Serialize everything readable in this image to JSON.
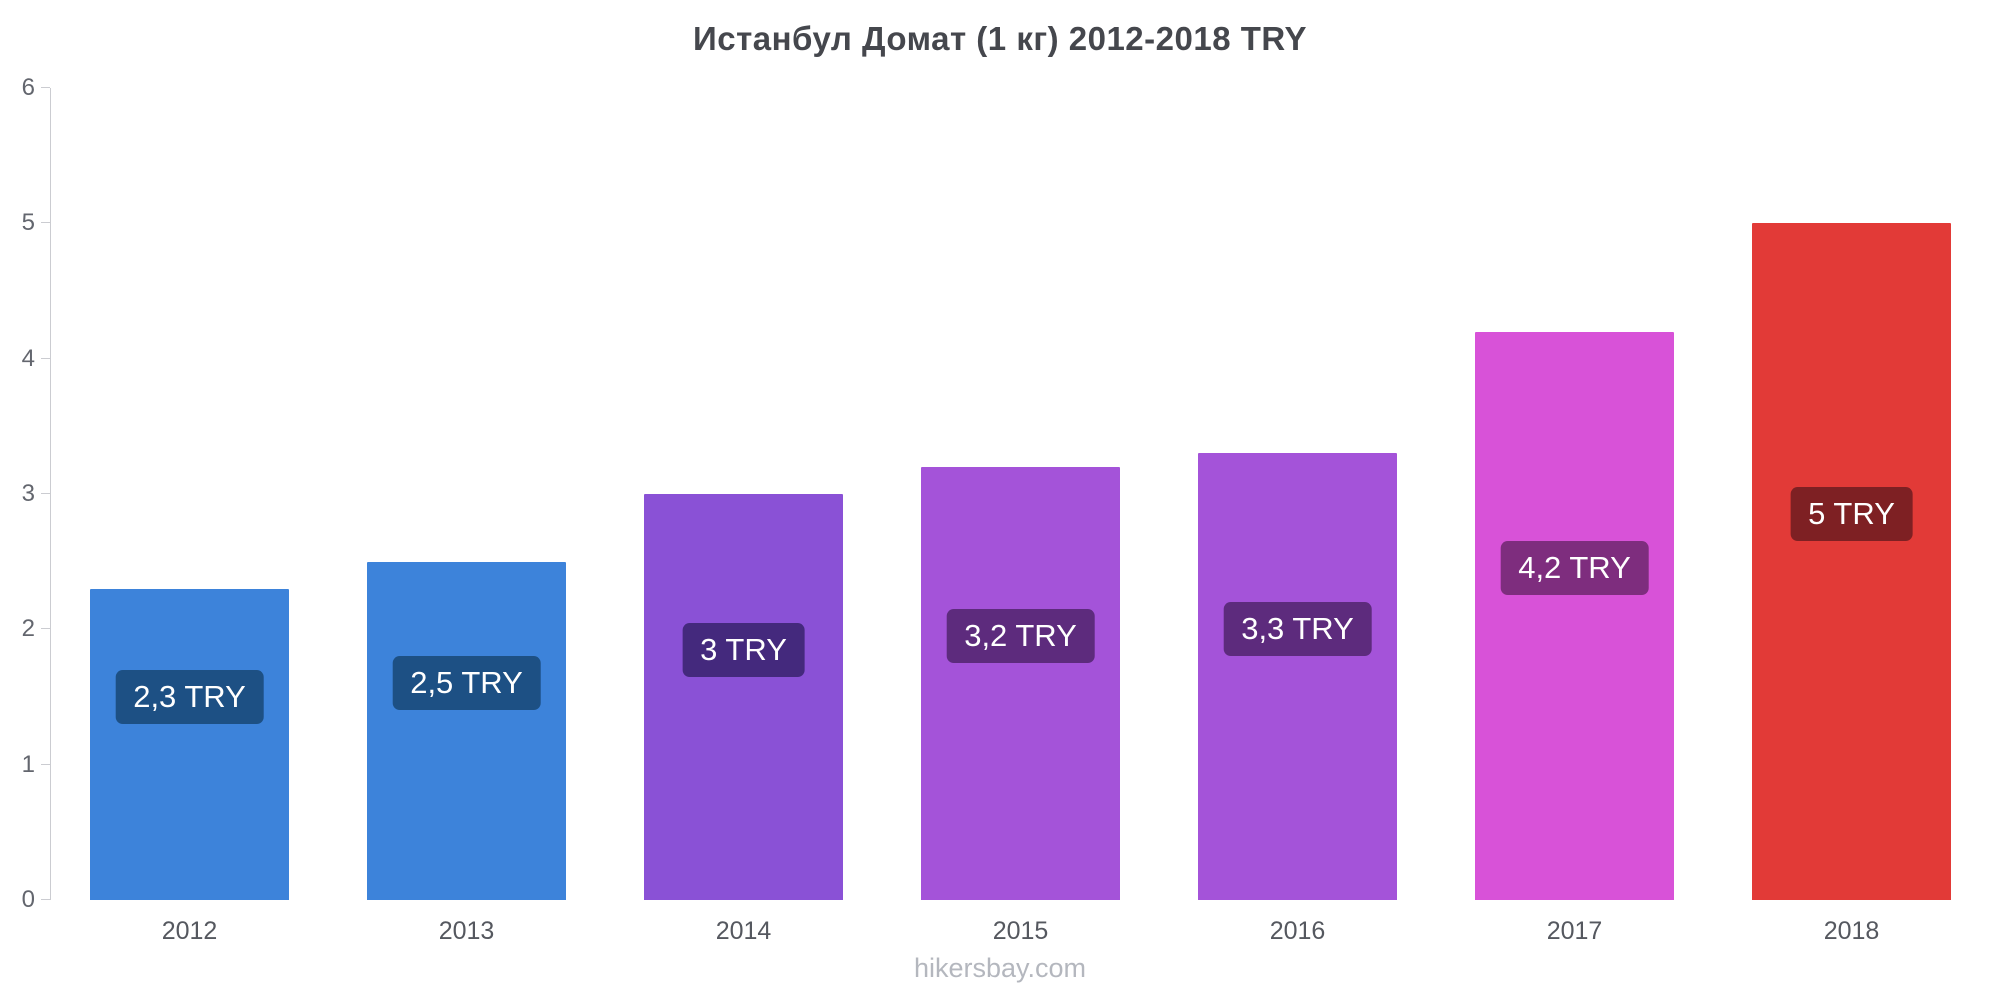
{
  "chart_data": {
    "type": "bar",
    "title": "Истанбул Домат (1 кг) 2012-2018 TRY",
    "categories": [
      "2012",
      "2013",
      "2014",
      "2015",
      "2016",
      "2017",
      "2018"
    ],
    "values": [
      2.3,
      2.5,
      3.0,
      3.2,
      3.3,
      4.2,
      5.0
    ],
    "labels": [
      "2,3 TRY",
      "2,5 TRY",
      "3 TRY",
      "3,2 TRY",
      "3,3 TRY",
      "4,2 TRY",
      "5 TRY"
    ],
    "bar_colors": [
      "#3d83da",
      "#3d83da",
      "#8a51d6",
      "#a453d9",
      "#a453d9",
      "#d852d8",
      "#e23a37"
    ],
    "label_colors": [
      "#1d5084",
      "#1d5084",
      "#44297d",
      "#5d2b7d",
      "#5d2b7d",
      "#7e2d7e",
      "#7e2023"
    ],
    "xlabel": "",
    "ylabel": "",
    "ylim": [
      0,
      6
    ],
    "yticks": [
      0,
      1,
      2,
      3,
      4,
      5,
      6
    ],
    "grid": false,
    "legend_position": "none"
  },
  "footer": {
    "text": "hikersbay.com"
  }
}
